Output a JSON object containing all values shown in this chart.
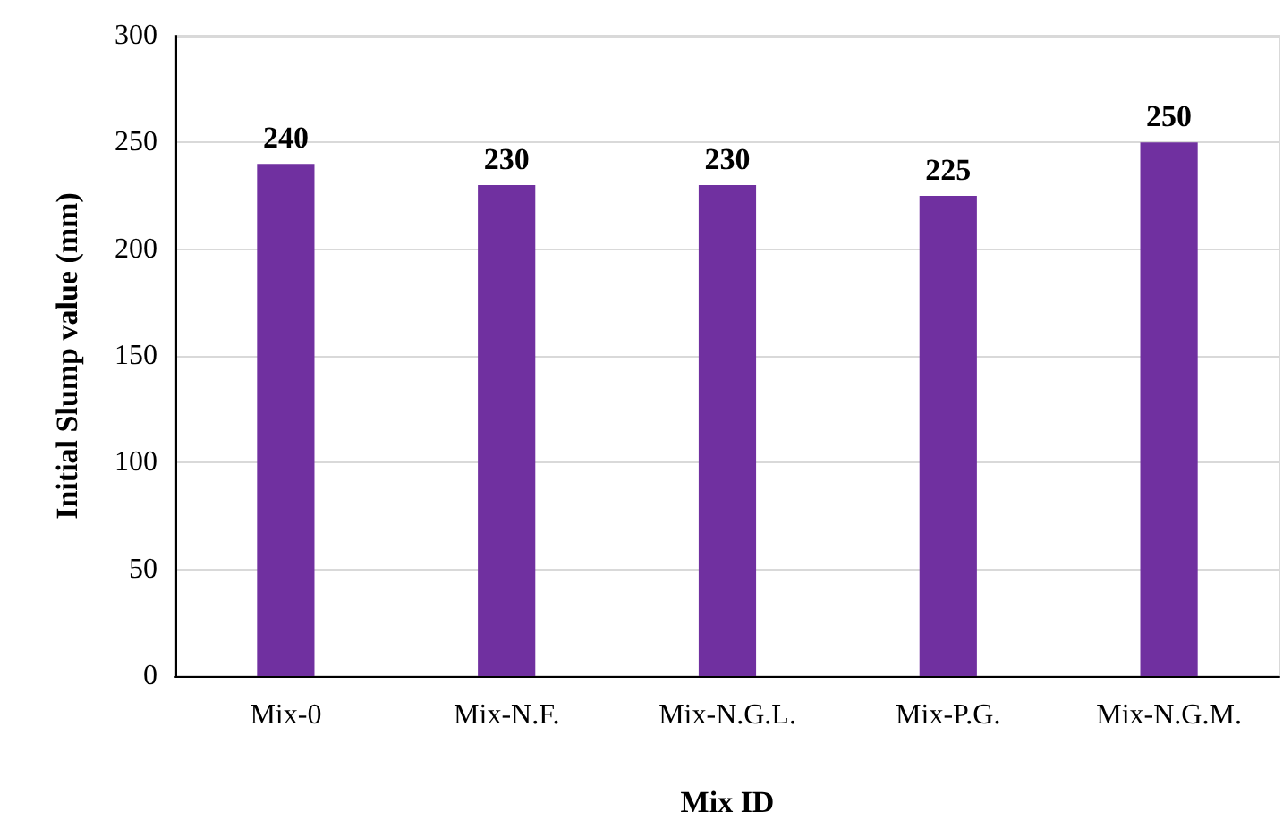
{
  "chart_data": {
    "type": "bar",
    "xlabel": "Mix ID",
    "ylabel": "Initial Slump value (mm)",
    "categories": [
      "Mix-0",
      "Mix-N.F.",
      "Mix-N.G.L.",
      "Mix-P.G.",
      "Mix-N.G.M."
    ],
    "values": [
      240,
      230,
      230,
      225,
      250
    ],
    "color": "#7030a0",
    "ylim": [
      0,
      300
    ],
    "yticks": [
      0,
      50,
      100,
      150,
      200,
      250,
      300
    ],
    "grid": "y",
    "data_labels": true
  }
}
